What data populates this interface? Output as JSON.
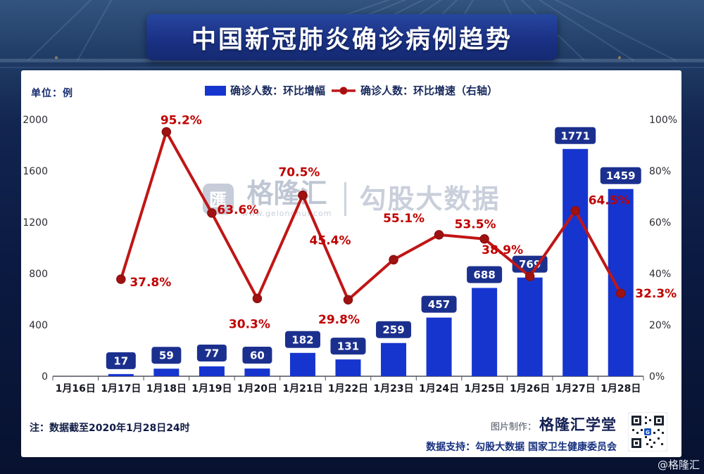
{
  "title": "中国新冠肺炎确诊病例趋势",
  "unit_label": "单位：例",
  "legend": {
    "bar_label": "确诊人数：环比增幅",
    "line_label": "确诊人数：环比增速（右轴）"
  },
  "watermark": {
    "logo_glyph": "匯",
    "brand": "格隆汇",
    "url": "www.gelonghui.com",
    "product": "勾股大数据"
  },
  "notes": {
    "left": "注：数据截至2020年1月28日24时",
    "credit_label": "图片制作：",
    "credit_brand": "格隆汇学堂",
    "support": "数据支持：勾股大数据 国家卫生健康委员会",
    "corner": "@格隆汇"
  },
  "colors": {
    "bar": "#1635cf",
    "line": "#c01616",
    "point": "#a01212",
    "percent": "#c00000",
    "label_box": "#1b308e",
    "banner": "#1b3185",
    "background": "#0b1a42"
  },
  "chart_data": {
    "type": "bar+line combo",
    "title": "中国新冠肺炎确诊病例趋势",
    "legend_position": "top",
    "grid": false,
    "categories": [
      "1月16日",
      "1月17日",
      "1月18日",
      "1月19日",
      "1月20日",
      "1月21日",
      "1月22日",
      "1月23日",
      "1月24日",
      "1月25日",
      "1月26日",
      "1月27日",
      "1月28日"
    ],
    "series": [
      {
        "name": "确诊人数：环比增幅",
        "type": "bar",
        "axis": "left",
        "values": [
          null,
          17,
          59,
          77,
          60,
          182,
          131,
          259,
          457,
          688,
          769,
          1771,
          1459
        ]
      },
      {
        "name": "确诊人数：环比增速（右轴）",
        "type": "line",
        "axis": "right",
        "unit": "%",
        "values": [
          null,
          37.8,
          95.2,
          63.6,
          30.3,
          70.5,
          29.8,
          45.4,
          55.1,
          53.5,
          38.9,
          64.5,
          32.3
        ]
      }
    ],
    "left_axis": {
      "min": 0,
      "max": 2000,
      "ticks": [
        0,
        400,
        800,
        1200,
        1600,
        2000
      ]
    },
    "right_axis": {
      "min": 0,
      "max": 100,
      "ticks": [
        0,
        20,
        40,
        60,
        80,
        100
      ],
      "suffix": "%"
    }
  }
}
